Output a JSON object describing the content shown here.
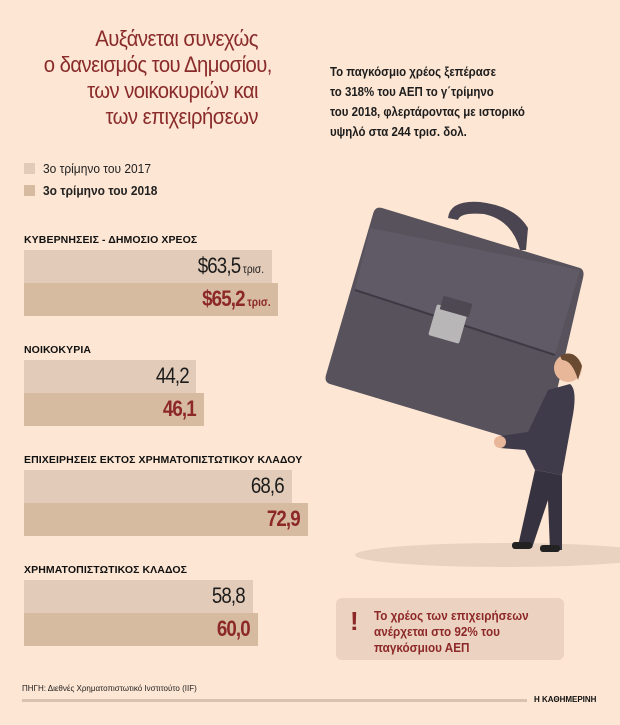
{
  "title_lines": [
    "Αυξάνεται συνεχώς",
    "ο δανεισμός του Δημοσίου,",
    "των νοικοκυριών και",
    "των επιχειρήσεων"
  ],
  "intro_lines": [
    "Το παγκόσμιο χρέος ξεπέρασε",
    "το 318% του ΑΕΠ  το γ΄τρίμηνο",
    "του 2018, φλερτάροντας με ιστορικό",
    "υψηλό στα 244 τρισ. δολ."
  ],
  "note": {
    "icon": "exclamation-icon",
    "lines": [
      "Το χρέος των επιχειρήσεων",
      "ανέρχεται στο 92% του",
      "παγκόσμιου ΑΕΠ"
    ]
  },
  "source": "ΠΗΓΗ:  Διεθνές Χρηματοπιστωτικό Ινστιτούτο (IIF)",
  "brand": "Η ΚΑΘΗΜΕΡΙΝΗ",
  "colors": {
    "bar_2017": "#e2cbb8",
    "bar_2018": "#d6bba1",
    "accent": "#8d2828",
    "background": "#fde6d3"
  },
  "chart_data": {
    "type": "bar",
    "orientation": "horizontal",
    "title": "Αυξάνεται συνεχώς ο δανεισμός του Δημοσίου, των νοικοκυριών και των επιχειρήσεων",
    "unit": "τρισ. $",
    "categories": [
      "ΚΥΒΕΡΝΗΣΕΙΣ - ΔΗΜΟΣΙΟ ΧΡΕΟΣ",
      "ΝΟΙΚΟΚΥΡΙΑ",
      "ΕΠΙΧΕΙΡΗΣΕΙΣ ΕΚΤΟΣ ΧΡΗΜΑΤΟΠΙΣΤΩΤΙΚΟΥ ΚΛΑΔΟΥ",
      "ΧΡΗΜΑΤΟΠΙΣΤΩΤΙΚΟΣ ΚΛΑΔΟΣ"
    ],
    "series": [
      {
        "name": "3ο τρίμηνο του 2017",
        "values": [
          63.5,
          44.2,
          68.6,
          58.8
        ],
        "labels": [
          "$63,5",
          "44,2",
          "68,6",
          "58,8"
        ]
      },
      {
        "name": "3ο τρίμηνο του 2018",
        "values": [
          65.2,
          46.1,
          72.9,
          60.0
        ],
        "labels": [
          "$65,2",
          "46,1",
          "72,9",
          "60,0"
        ]
      }
    ],
    "first_unit_label": "τρισ.",
    "legend": "top-left",
    "grid": false
  }
}
